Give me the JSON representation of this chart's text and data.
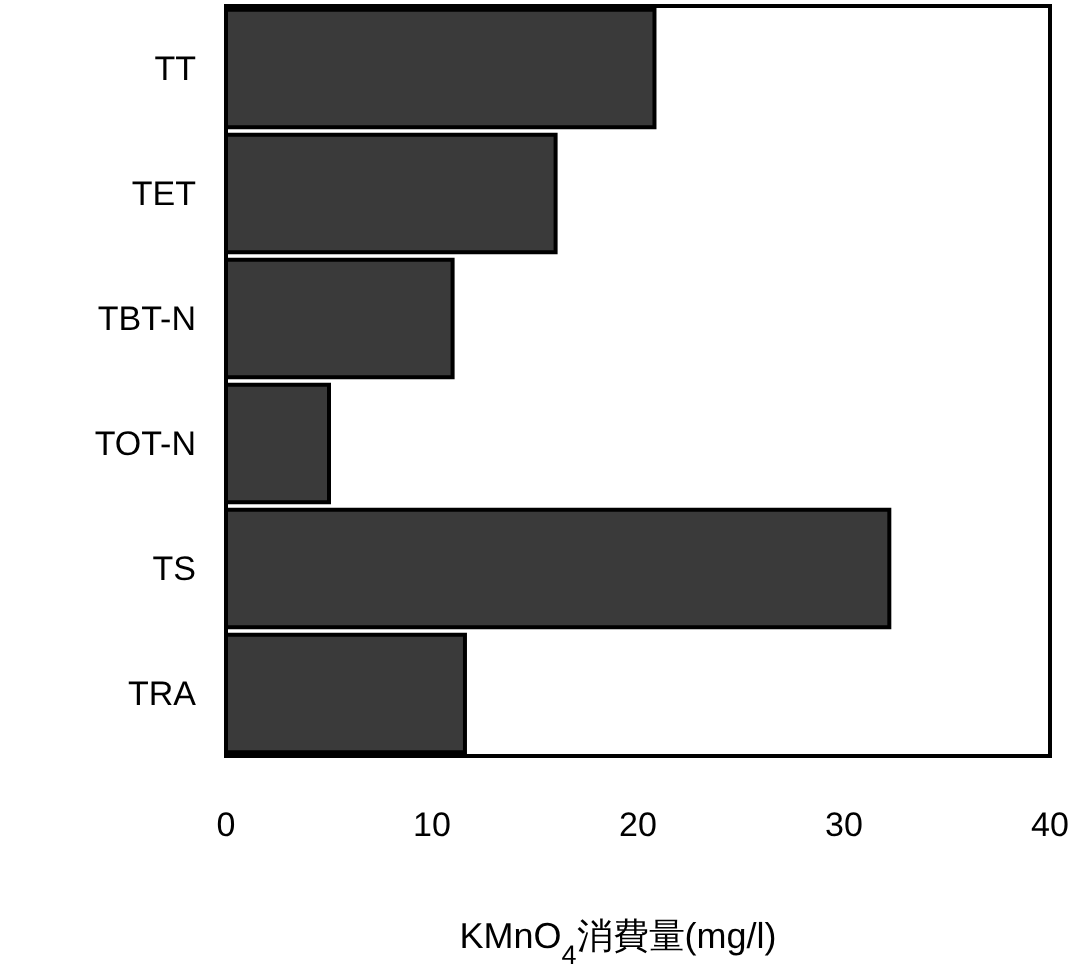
{
  "chart_data": {
    "type": "bar",
    "orientation": "horizontal",
    "xlabel": "KMnO$_{4}$消費量(mg/l)",
    "categories": [
      "TT",
      "TET",
      "TBT-N",
      "TOT-N",
      "TS",
      "TRA"
    ],
    "values": [
      20.8,
      16.0,
      11.0,
      5.0,
      32.2,
      11.6
    ],
    "color": "#3a3a3a",
    "xlim": [
      0,
      40
    ],
    "xticks": [
      0,
      10,
      20,
      30,
      40
    ]
  }
}
